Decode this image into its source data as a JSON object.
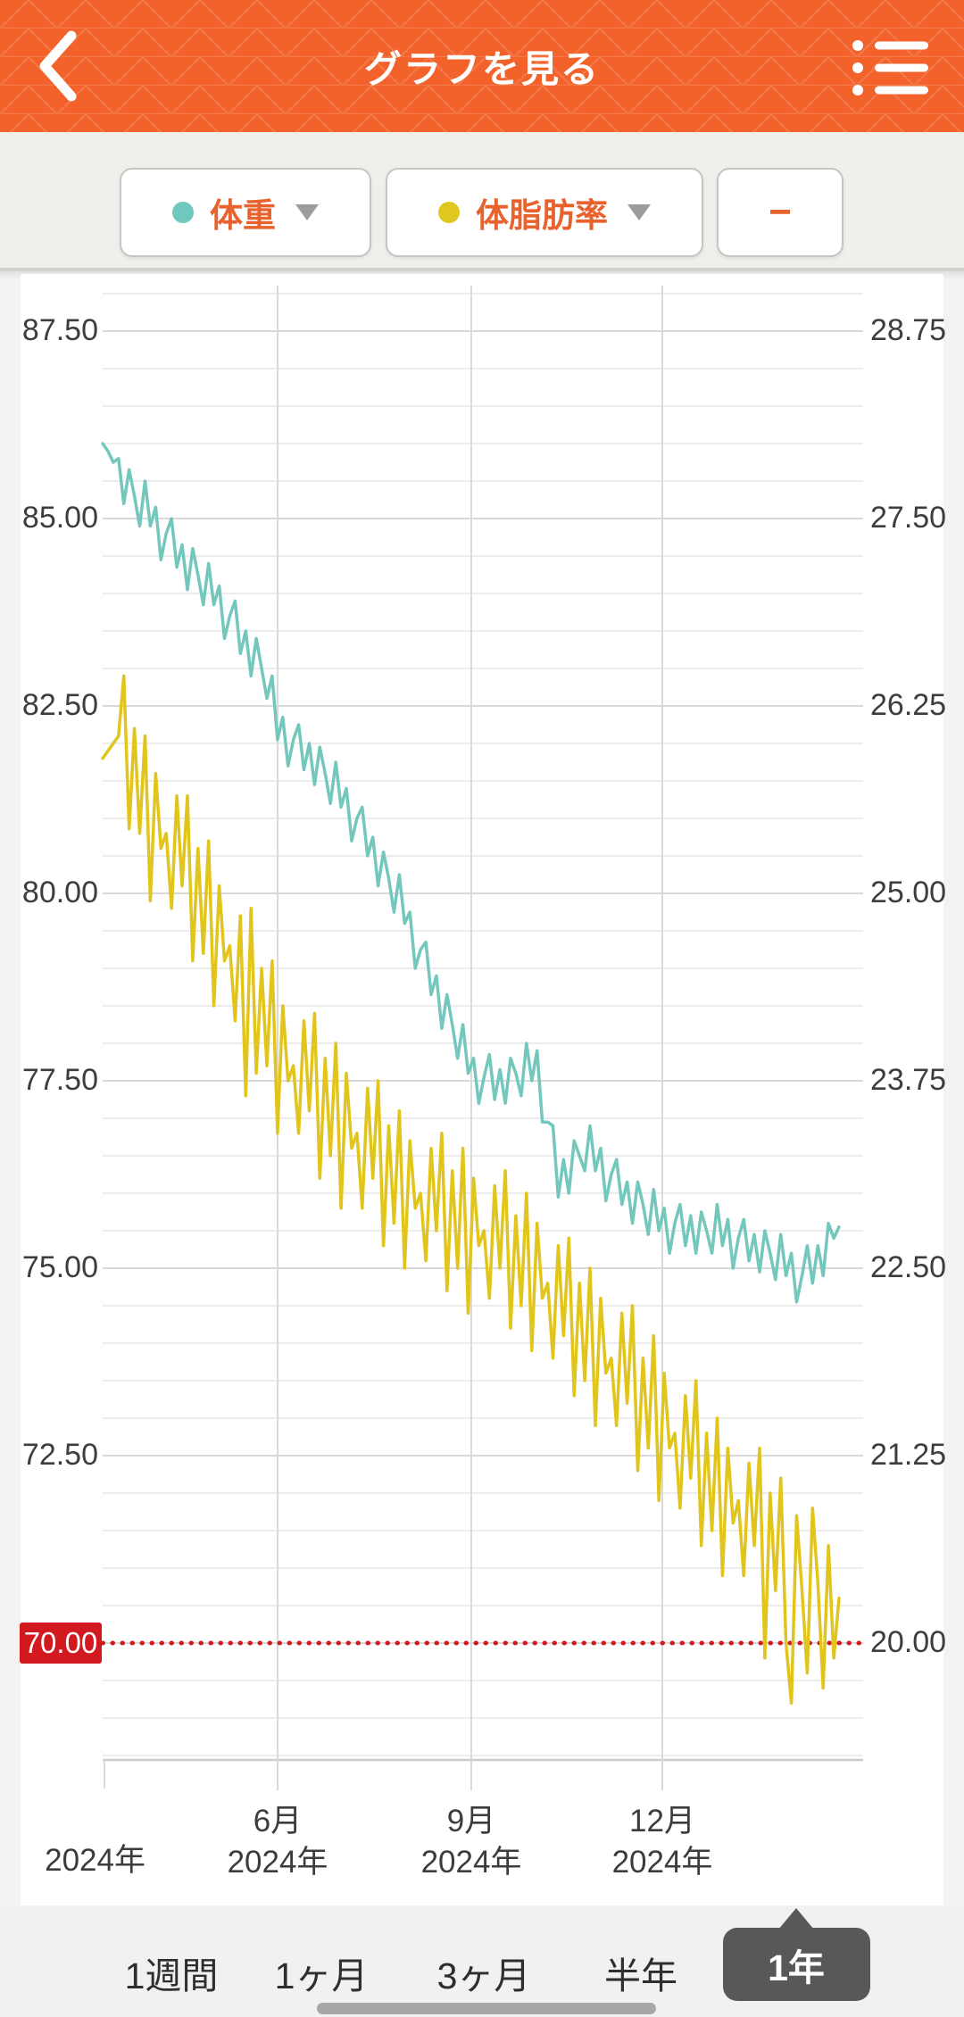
{
  "header": {
    "title": "グラフを見る",
    "back_icon": "chevron-left",
    "menu_icon": "bullet-list"
  },
  "metric_selectors": {
    "metric1": {
      "label": "体重",
      "dot_color": "#6fc8bd"
    },
    "metric2": {
      "label": "体脂肪率",
      "dot_color": "#dfc71f"
    },
    "remove_label": "−"
  },
  "chart_data": {
    "type": "line",
    "title": "",
    "grid": true,
    "x_axis": {
      "ticks": [
        {
          "month": "6月",
          "year": "2024年",
          "x": 311
        },
        {
          "month": "9月",
          "year": "2024年",
          "x": 528
        },
        {
          "month": "12月",
          "year": "2024年",
          "x": 742
        }
      ],
      "partial_left_label": "2024年"
    },
    "left_axis": {
      "ticks": [
        "87.50",
        "85.00",
        "82.50",
        "80.00",
        "77.50",
        "75.00",
        "72.50"
      ],
      "top_value": 87.5,
      "step": 2.5
    },
    "right_axis": {
      "ticks": [
        "28.75",
        "27.50",
        "26.25",
        "25.00",
        "23.75",
        "22.50",
        "21.25",
        "20.00"
      ],
      "top_value": 28.75,
      "step": 1.25
    },
    "goal_line": {
      "label": "70.00",
      "value": 70.0,
      "color": "#d2191f"
    },
    "series": [
      {
        "name": "体重",
        "axis": "left",
        "color": "#74c7bc",
        "values": [
          86.0,
          85.9,
          85.75,
          85.8,
          85.2,
          85.65,
          85.3,
          84.9,
          85.5,
          84.9,
          85.15,
          84.45,
          84.8,
          85.0,
          84.35,
          84.65,
          84.05,
          84.6,
          84.25,
          83.85,
          84.4,
          83.85,
          84.1,
          83.4,
          83.7,
          83.9,
          83.2,
          83.5,
          82.9,
          83.4,
          83.0,
          82.6,
          82.9,
          82.05,
          82.35,
          81.7,
          82.05,
          82.25,
          81.65,
          82.0,
          81.45,
          81.95,
          81.6,
          81.2,
          81.75,
          81.15,
          81.4,
          80.7,
          81.0,
          81.15,
          80.5,
          80.75,
          80.1,
          80.55,
          80.2,
          79.75,
          80.25,
          79.6,
          79.75,
          79.0,
          79.25,
          79.35,
          78.65,
          78.9,
          78.2,
          78.65,
          78.25,
          77.8,
          78.25,
          77.6,
          77.8,
          77.2,
          77.55,
          77.85,
          77.25,
          77.65,
          77.2,
          77.8,
          77.6,
          77.3,
          78.0,
          77.5,
          77.9,
          76.95,
          76.95,
          76.9,
          75.95,
          76.45,
          76.0,
          76.7,
          76.5,
          76.3,
          76.9,
          76.3,
          76.6,
          75.9,
          76.25,
          76.45,
          75.85,
          76.15,
          75.6,
          76.15,
          75.85,
          75.45,
          76.05,
          75.5,
          75.8,
          75.2,
          75.6,
          75.85,
          75.3,
          75.7,
          75.2,
          75.75,
          75.5,
          75.2,
          75.85,
          75.3,
          75.65,
          75.0,
          75.4,
          75.65,
          75.1,
          75.45,
          74.95,
          75.5,
          75.2,
          74.85,
          75.45,
          74.9,
          75.2,
          74.55,
          74.9,
          75.3,
          74.8,
          75.3,
          74.9,
          75.6,
          75.4,
          75.55
        ]
      },
      {
        "name": "体脂肪率",
        "axis": "right",
        "color": "#e2c51c",
        "values": [
          25.9,
          25.95,
          26.0,
          26.05,
          26.45,
          25.43,
          26.1,
          25.4,
          26.05,
          24.95,
          25.8,
          25.3,
          25.4,
          24.9,
          25.65,
          25.05,
          25.65,
          24.55,
          25.3,
          24.6,
          25.35,
          24.25,
          25.05,
          24.55,
          24.65,
          24.15,
          24.85,
          23.65,
          24.9,
          23.8,
          24.5,
          23.85,
          24.55,
          23.4,
          24.25,
          23.75,
          23.85,
          23.4,
          24.15,
          23.55,
          24.2,
          23.1,
          23.9,
          23.25,
          24.0,
          22.9,
          23.8,
          23.3,
          23.4,
          22.9,
          23.7,
          23.1,
          23.75,
          22.65,
          23.45,
          22.8,
          23.55,
          22.5,
          23.35,
          22.9,
          23.0,
          22.55,
          23.3,
          22.75,
          23.4,
          22.35,
          23.15,
          22.5,
          23.3,
          22.2,
          23.1,
          22.65,
          22.75,
          22.3,
          23.05,
          22.5,
          23.15,
          22.1,
          22.85,
          22.25,
          23.0,
          21.95,
          22.8,
          22.3,
          22.4,
          21.9,
          22.65,
          22.05,
          22.7,
          21.65,
          22.4,
          21.75,
          22.5,
          21.45,
          22.3,
          21.8,
          21.9,
          21.45,
          22.2,
          21.6,
          22.25,
          21.15,
          21.9,
          21.3,
          22.05,
          20.95,
          21.8,
          21.3,
          21.4,
          20.9,
          21.65,
          21.1,
          21.75,
          20.65,
          21.4,
          20.75,
          21.5,
          20.45,
          21.3,
          20.8,
          20.95,
          20.45,
          21.2,
          20.65,
          21.3,
          19.9,
          21.0,
          20.35,
          21.1,
          20.0,
          19.6,
          20.85,
          20.35,
          19.8,
          20.9,
          20.4,
          19.7,
          20.65,
          19.9,
          20.3
        ]
      }
    ]
  },
  "range_tabs": {
    "items": [
      {
        "label": "1週間",
        "selected": false
      },
      {
        "label": "1ヶ月",
        "selected": false
      },
      {
        "label": "3ヶ月",
        "selected": false
      },
      {
        "label": "半年",
        "selected": false
      },
      {
        "label": "1年",
        "selected": true
      }
    ]
  }
}
